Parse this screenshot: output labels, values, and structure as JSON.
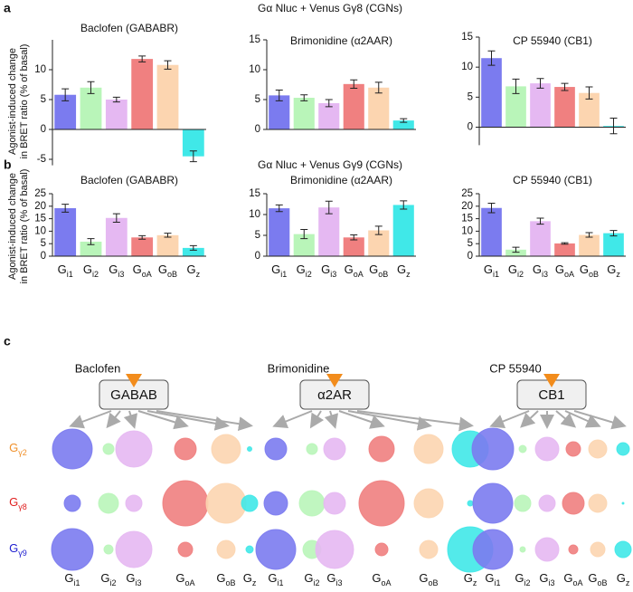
{
  "panels": [
    "a",
    "b",
    "c"
  ],
  "headers": [
    "Gα Nluc + Venus Gγ8 (CGNs)",
    "Gα Nluc + Venus Gγ9 (CGNs)"
  ],
  "ylabel": [
    "Agonist-induced change",
    "in BRET ratio (% of basal)"
  ],
  "chart_data": [
    {
      "type": "bar",
      "title": "Baclofen (GABABR)",
      "values": [
        5.8,
        7.0,
        5.0,
        11.8,
        10.8,
        -4.5
      ],
      "errors": [
        1.0,
        1.0,
        0.4,
        0.5,
        0.7,
        0.9
      ],
      "colors": [
        "#7b7bef",
        "#b9f5b9",
        "#e5b8f2",
        "#f08080",
        "#fcd5b0",
        "#40e8e8"
      ],
      "ylim": [
        -6,
        15
      ],
      "yticks": [
        -5,
        0,
        5,
        10
      ]
    },
    {
      "type": "bar",
      "title": "Brimonidine (α2AAR)",
      "values": [
        5.7,
        5.3,
        4.4,
        7.6,
        7.0,
        1.5
      ],
      "errors": [
        0.9,
        0.5,
        0.6,
        0.7,
        0.9,
        0.3
      ],
      "colors": [
        "#7b7bef",
        "#b9f5b9",
        "#e5b8f2",
        "#f08080",
        "#fcd5b0",
        "#40e8e8"
      ],
      "ylim": [
        0,
        15
      ],
      "yticks": [
        0,
        5,
        10,
        15
      ]
    },
    {
      "type": "bar",
      "title": "CP 55940 (CB1)",
      "values": [
        11.5,
        6.8,
        7.3,
        6.7,
        5.7,
        0.2
      ],
      "errors": [
        1.2,
        1.2,
        0.8,
        0.6,
        1.0,
        1.3
      ],
      "colors": [
        "#7b7bef",
        "#b9f5b9",
        "#e5b8f2",
        "#f08080",
        "#fcd5b0",
        "#40e8e8"
      ],
      "ylim": [
        -3,
        15
      ],
      "yticks": [
        0,
        5,
        10,
        15
      ]
    },
    {
      "type": "bar",
      "title": "Baclofen (GABABR)",
      "categories": [
        "Gi1",
        "Gi2",
        "Gi3",
        "GoA",
        "GoB",
        "Gz"
      ],
      "values": [
        19.2,
        5.8,
        15.3,
        7.5,
        8.4,
        3.3
      ],
      "errors": [
        1.6,
        1.2,
        1.7,
        0.7,
        0.8,
        0.9
      ],
      "colors": [
        "#7b7bef",
        "#b9f5b9",
        "#e5b8f2",
        "#f08080",
        "#fcd5b0",
        "#40e8e8"
      ],
      "ylim": [
        0,
        25
      ],
      "yticks": [
        0,
        5,
        10,
        15,
        20,
        25
      ]
    },
    {
      "type": "bar",
      "title": "Brimonidine (α2AAR)",
      "categories": [
        "Gi1",
        "Gi2",
        "Gi3",
        "GoA",
        "GoB",
        "Gz"
      ],
      "values": [
        11.5,
        5.3,
        11.7,
        4.5,
        6.2,
        12.3
      ],
      "errors": [
        0.8,
        1.1,
        1.5,
        0.6,
        1.0,
        1.0
      ],
      "colors": [
        "#7b7bef",
        "#b9f5b9",
        "#e5b8f2",
        "#f08080",
        "#fcd5b0",
        "#40e8e8"
      ],
      "ylim": [
        0,
        15
      ],
      "yticks": [
        0,
        5,
        10,
        15
      ]
    },
    {
      "type": "bar",
      "title": "CP 55940 (CB1)",
      "categories": [
        "Gi1",
        "Gi2",
        "Gi3",
        "GoA",
        "GoB",
        "Gz"
      ],
      "values": [
        19.3,
        2.6,
        14.0,
        5.1,
        8.5,
        9.2
      ],
      "errors": [
        1.9,
        1.0,
        1.2,
        0.3,
        0.9,
        1.1
      ],
      "colors": [
        "#7b7bef",
        "#b9f5b9",
        "#e5b8f2",
        "#f08080",
        "#fcd5b0",
        "#40e8e8"
      ],
      "ylim": [
        0,
        25
      ],
      "yticks": [
        0,
        5,
        10,
        15,
        20,
        25
      ]
    }
  ],
  "panel_c": {
    "rows": [
      "Gγ2",
      "Gγ8",
      "Gγ9"
    ],
    "row_colors": [
      "#f0902a",
      "#e02020",
      "#2020d0"
    ],
    "colors": [
      "#7b7bef",
      "#b9f5b9",
      "#e5b8f2",
      "#f08080",
      "#fcd5b0",
      "#40e8e8"
    ],
    "groups": [
      {
        "agonist": "Baclofen",
        "receptor": "GABAB",
        "categories": [
          "Gi1",
          "Gi2",
          "Gi3",
          "GoA",
          "GoB",
          "Gz"
        ],
        "sizes": [
          [
            22,
            6,
            20,
            12,
            16,
            2.5
          ],
          [
            9,
            11,
            9,
            25,
            22,
            9
          ],
          [
            23,
            5,
            20,
            8,
            10,
            4
          ]
        ]
      },
      {
        "agonist": "Brimonidine",
        "receptor": "α2AR",
        "categories": [
          "Gi1",
          "Gi2",
          "Gi3",
          "GoA",
          "GoB",
          "Gz"
        ],
        "sizes": [
          [
            12,
            6,
            12,
            14,
            16,
            20
          ],
          [
            13,
            14,
            12,
            25,
            16,
            3
          ],
          [
            22,
            10,
            21,
            7,
            10,
            25
          ]
        ]
      },
      {
        "agonist": "CP 55940",
        "receptor": "CB1",
        "categories": [
          "Gi1",
          "Gi2",
          "Gi3",
          "GoA",
          "GoB",
          "Gz"
        ],
        "sizes": [
          [
            23,
            4,
            13,
            8,
            10,
            7
          ],
          [
            22,
            9,
            9,
            12,
            10,
            1
          ],
          [
            22,
            3,
            13,
            5,
            8,
            9
          ]
        ]
      }
    ]
  }
}
